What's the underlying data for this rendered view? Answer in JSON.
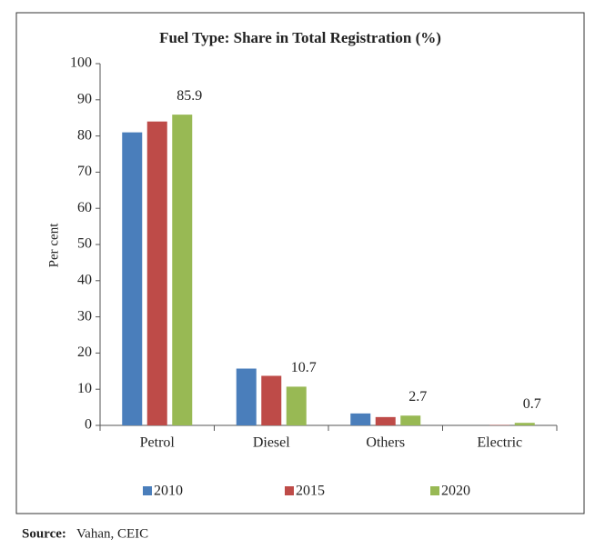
{
  "chart_data": {
    "type": "bar",
    "title": "Fuel Type: Share in Total Registration (%)",
    "y_label": "Per cent",
    "categories": [
      "Petrol",
      "Diesel",
      "Others",
      "Electric"
    ],
    "series": [
      {
        "name": "2010",
        "color": "#4a7ebb",
        "values": [
          81,
          15.7,
          3.3,
          0
        ]
      },
      {
        "name": "2015",
        "color": "#be4b48",
        "values": [
          84,
          13.7,
          2.3,
          0.1
        ]
      },
      {
        "name": "2020",
        "color": "#98b954",
        "values": [
          85.9,
          10.7,
          2.7,
          0.7
        ],
        "show_labels": true
      }
    ],
    "ylim": [
      0,
      100
    ],
    "yticks": [
      0,
      10,
      20,
      30,
      40,
      50,
      60,
      70,
      80,
      90,
      100
    ],
    "legend": "bottom"
  },
  "source_label": "Source:",
  "source": "Vahan, CEIC"
}
